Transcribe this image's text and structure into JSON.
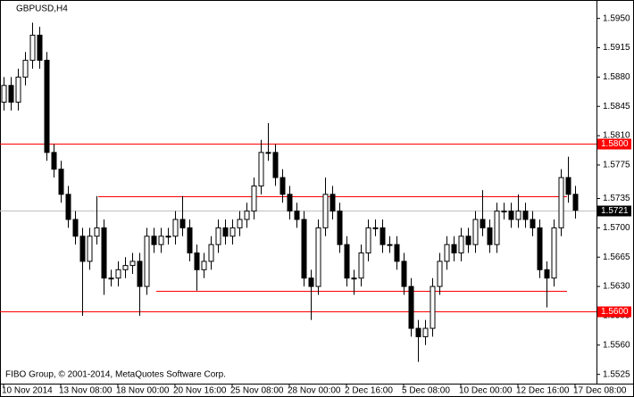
{
  "chart_data": {
    "type": "candlestick",
    "title": "GBPUSD,H4",
    "footer": "FIBO Group, © 2001-2014, MetaQuotes Software Corp.",
    "categories": [
      "10 Nov 2014",
      null,
      null,
      null,
      null,
      null,
      null,
      null,
      "13 Nov 08:00",
      null,
      null,
      null,
      null,
      null,
      null,
      null,
      "18 Nov 00:00",
      null,
      null,
      null,
      null,
      null,
      null,
      null,
      "20 Nov 16:00",
      null,
      null,
      null,
      null,
      null,
      null,
      null,
      "25 Nov 08:00",
      null,
      null,
      null,
      null,
      null,
      null,
      null,
      "28 Nov 00:00",
      null,
      null,
      null,
      null,
      null,
      null,
      null,
      "2 Dec 16:00",
      null,
      null,
      null,
      null,
      null,
      null,
      null,
      "5 Dec 08:00",
      null,
      null,
      null,
      null,
      null,
      null,
      null,
      "10 Dec 00:00",
      null,
      null,
      null,
      null,
      null,
      null,
      null,
      "12 Dec 16:00",
      null,
      null,
      null,
      null,
      null,
      null,
      null,
      "17 Dec 08:00"
    ],
    "open": [
      1.585,
      1.587,
      1.585,
      1.588,
      1.59,
      1.593,
      1.59,
      1.579,
      1.577,
      1.574,
      1.571,
      1.569,
      1.566,
      1.569,
      1.57,
      1.564,
      1.564,
      1.565,
      1.5655,
      1.566,
      1.563,
      1.569,
      1.568,
      1.569,
      1.569,
      1.571,
      1.57,
      1.567,
      1.565,
      1.566,
      1.568,
      1.57,
      1.569,
      1.57,
      1.571,
      1.572,
      1.575,
      1.579,
      1.579,
      1.576,
      1.574,
      1.572,
      1.571,
      1.564,
      1.563,
      1.57,
      1.574,
      1.572,
      1.568,
      1.564,
      1.564,
      1.567,
      1.57,
      1.57,
      1.568,
      1.568,
      1.566,
      1.563,
      1.558,
      1.557,
      1.558,
      1.563,
      1.566,
      1.568,
      1.567,
      1.569,
      1.568,
      1.571,
      1.57,
      1.568,
      1.572,
      1.572,
      1.571,
      1.572,
      1.571,
      1.57,
      1.565,
      1.564,
      1.57,
      1.576,
      1.574
    ],
    "high": [
      1.588,
      1.588,
      1.589,
      1.591,
      1.5945,
      1.594,
      1.591,
      1.58,
      1.578,
      1.575,
      1.572,
      1.57,
      1.57,
      1.5738,
      1.571,
      1.565,
      1.566,
      1.5665,
      1.567,
      1.567,
      1.57,
      1.57,
      1.57,
      1.57,
      1.572,
      1.5738,
      1.571,
      1.568,
      1.567,
      1.569,
      1.571,
      1.571,
      1.571,
      1.572,
      1.573,
      1.576,
      1.5805,
      1.5825,
      1.58,
      1.577,
      1.575,
      1.573,
      1.572,
      1.565,
      1.571,
      1.576,
      1.575,
      1.573,
      1.569,
      1.565,
      1.568,
      1.571,
      1.571,
      1.571,
      1.569,
      1.569,
      1.567,
      1.564,
      1.559,
      1.559,
      1.564,
      1.567,
      1.569,
      1.569,
      1.57,
      1.57,
      1.572,
      1.5745,
      1.571,
      1.573,
      1.573,
      1.573,
      1.574,
      1.573,
      1.572,
      1.571,
      1.566,
      1.571,
      1.577,
      1.5785,
      1.575
    ],
    "low": [
      1.584,
      1.584,
      1.584,
      1.587,
      1.589,
      1.589,
      1.578,
      1.576,
      1.573,
      1.57,
      1.568,
      1.5595,
      1.565,
      1.568,
      1.562,
      1.563,
      1.563,
      1.564,
      1.5645,
      1.5595,
      1.562,
      1.567,
      1.567,
      1.568,
      1.568,
      1.569,
      1.566,
      1.5625,
      1.564,
      1.565,
      1.567,
      1.568,
      1.568,
      1.569,
      1.57,
      1.571,
      1.574,
      1.578,
      1.575,
      1.573,
      1.571,
      1.57,
      1.563,
      1.559,
      1.562,
      1.569,
      1.571,
      1.567,
      1.563,
      1.562,
      1.563,
      1.566,
      1.569,
      1.567,
      1.567,
      1.565,
      1.562,
      1.557,
      1.554,
      1.556,
      1.557,
      1.562,
      1.565,
      1.566,
      1.566,
      1.567,
      1.567,
      1.569,
      1.567,
      1.567,
      1.571,
      1.57,
      1.57,
      1.57,
      1.569,
      1.564,
      1.5605,
      1.563,
      1.569,
      1.573,
      1.5711
    ],
    "close": [
      1.587,
      1.585,
      1.588,
      1.59,
      1.593,
      1.59,
      1.579,
      1.577,
      1.574,
      1.571,
      1.569,
      1.566,
      1.569,
      1.57,
      1.564,
      1.564,
      1.565,
      1.5655,
      1.566,
      1.563,
      1.569,
      1.568,
      1.569,
      1.569,
      1.571,
      1.57,
      1.567,
      1.565,
      1.566,
      1.568,
      1.57,
      1.569,
      1.57,
      1.571,
      1.572,
      1.575,
      1.579,
      1.579,
      1.576,
      1.574,
      1.572,
      1.571,
      1.564,
      1.563,
      1.57,
      1.574,
      1.572,
      1.568,
      1.564,
      1.564,
      1.567,
      1.57,
      1.57,
      1.568,
      1.568,
      1.566,
      1.563,
      1.558,
      1.557,
      1.558,
      1.563,
      1.566,
      1.568,
      1.567,
      1.569,
      1.568,
      1.571,
      1.57,
      1.568,
      1.572,
      1.572,
      1.571,
      1.572,
      1.571,
      1.57,
      1.565,
      1.564,
      1.57,
      1.576,
      1.574,
      1.5721
    ],
    "ylim": [
      1.5514,
      1.5972
    ],
    "yticks": [
      {
        "value": 1.595,
        "label": "1.5950"
      },
      1.5915,
      {
        "value": 1.588,
        "label": "1.5880"
      },
      1.5845,
      {
        "value": 1.581,
        "label": "1.5810"
      },
      1.5775,
      1.5735,
      {
        "value": 1.57,
        "label": "1.5700"
      },
      1.5665,
      {
        "value": 1.563,
        "label": "1.5630"
      },
      1.5595,
      {
        "value": 1.556,
        "label": "1.5560"
      },
      1.5525
    ],
    "levels": [
      {
        "value": 1.58,
        "label": "1.5800",
        "color": "#ff0000"
      },
      {
        "value": 1.56,
        "label": "1.5600",
        "color": "#ff0000"
      },
      {
        "value": 1.5721,
        "label": "1.5721",
        "color": "#c0c0c0"
      },
      {
        "value": 1.5738,
        "color": "#ff0000"
      },
      {
        "value": 1.5625,
        "color": "#ff0000"
      }
    ]
  }
}
